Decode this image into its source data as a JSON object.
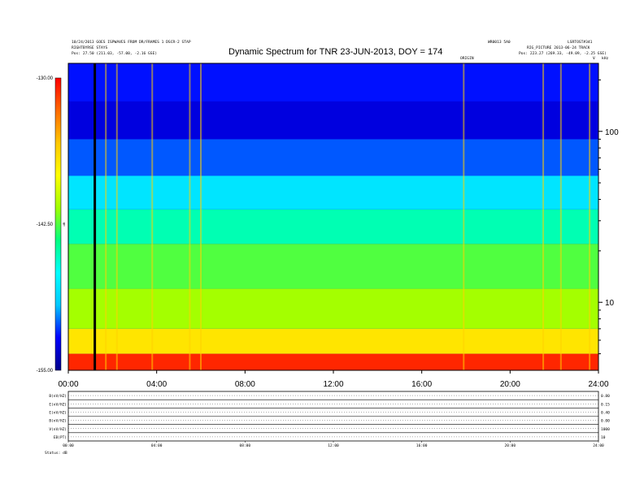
{
  "header": {
    "left_line1": "10/24/2013 GOES ISPWAVES FROM DR/FRAMES 1 DSCR-2 STAP",
    "left_line2": "RIGHTBYRSE STAYS",
    "left_line3": "Pos:   27.50 (211.03, -57.00, -2.16 GSE)",
    "right_line1a": "WR0013 5A0",
    "right_line1b": "LSRTOST#341",
    "right_line2": "RIG_PICTURE 2013-06-24 TRACK",
    "right_line3": "Pos:   223.27 (269.33, -49.09, -2.25 GSE)",
    "above_plot": "ORIGIN",
    "above_right_v": "V",
    "above_right_k": "kHz"
  },
  "chart_data": {
    "type": "heatmap",
    "title": "Dynamic Spectrum for TNR 23-JUN-2013, DOY = 174",
    "xlabel": "",
    "ylabel": "",
    "x_ticks": [
      "00:00",
      "04:00",
      "08:00",
      "12:00",
      "16:00",
      "20:00",
      "24:00"
    ],
    "x_range_hours": [
      0,
      24
    ],
    "y_scale": "log",
    "y_ticks": [
      {
        "value": 100,
        "label": "100"
      },
      {
        "value": 10,
        "label": "10"
      }
    ],
    "y_range_khz": [
      4,
      250
    ],
    "colorbar": {
      "label": "dB",
      "ticks": [
        "-130.00",
        "-142.50",
        "-155.00"
      ],
      "range": [
        -155,
        -130
      ],
      "colors": [
        "#00008b",
        "#0000ff",
        "#00c8ff",
        "#00ffff",
        "#00ff80",
        "#a0ff00",
        "#ffff00",
        "#ffc800",
        "#ff6a00",
        "#ff0000"
      ]
    },
    "marker_line_hours": 1.2,
    "bands": [
      {
        "from_khz": 4.0,
        "to_khz": 5.0,
        "level": -131
      },
      {
        "from_khz": 5.0,
        "to_khz": 7.0,
        "level": -137
      },
      {
        "from_khz": 7.0,
        "to_khz": 12.0,
        "level": -141
      },
      {
        "from_khz": 12.0,
        "to_khz": 22.0,
        "level": -142.5
      },
      {
        "from_khz": 22.0,
        "to_khz": 35.0,
        "level": -145
      },
      {
        "from_khz": 35.0,
        "to_khz": 55.0,
        "level": -148
      },
      {
        "from_khz": 55.0,
        "to_khz": 90.0,
        "level": -151
      },
      {
        "from_khz": 90.0,
        "to_khz": 150.0,
        "level": -153
      },
      {
        "from_khz": 150.0,
        "to_khz": 250.0,
        "level": -152
      }
    ],
    "bursts_hours": [
      1.7,
      2.2,
      3.8,
      5.5,
      6.0,
      17.9,
      21.5,
      22.3,
      23.6
    ]
  },
  "panels": [
    {
      "label": "B(nV/HZ)",
      "right": "0.80"
    },
    {
      "label": "E(nV/HZ)",
      "right": "0.15"
    },
    {
      "label": "E(nV/HZ)",
      "right": "0.40"
    },
    {
      "label": "B(nV/HZ)",
      "right": "0.00"
    },
    {
      "label": "V(nV/HZ)",
      "right": "1000"
    },
    {
      "label": "EB(PT)",
      "right": "10"
    }
  ],
  "panel_x_ticks": [
    "00:00",
    "04:00",
    "08:00",
    "12:00",
    "16:00",
    "20:00",
    "24:00"
  ],
  "footer_left": "Status:  dB"
}
